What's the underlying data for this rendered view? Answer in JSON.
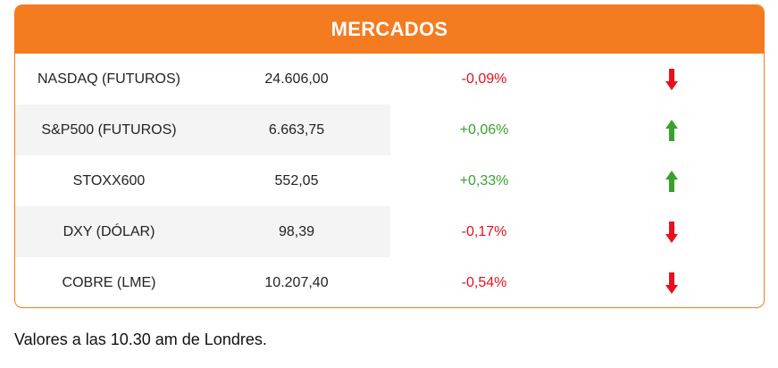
{
  "widget": {
    "title": "MERCADOS",
    "colors": {
      "header_bg": "#f47b20",
      "negative": "#e8101a",
      "positive": "#3aa12c"
    }
  },
  "rows": [
    {
      "name": "NASDAQ (FUTUROS)",
      "value": "24.606,00",
      "change": "-0,09%",
      "direction": "down",
      "icon": "arrow-down-icon"
    },
    {
      "name": "S&P500 (FUTUROS)",
      "value": "6.663,75",
      "change": "+0,06%",
      "direction": "up",
      "icon": "arrow-up-icon"
    },
    {
      "name": "STOXX600",
      "value": "552,05",
      "change": "+0,33%",
      "direction": "up",
      "icon": "arrow-up-icon"
    },
    {
      "name": "DXY (DÓLAR)",
      "value": "98,39",
      "change": "-0,17%",
      "direction": "down",
      "icon": "arrow-down-icon"
    },
    {
      "name": "COBRE (LME)",
      "value": "10.207,40",
      "change": "-0,54%",
      "direction": "down",
      "icon": "arrow-down-icon"
    }
  ],
  "footer": {
    "note": "Valores a las 10.30 am de Londres."
  }
}
